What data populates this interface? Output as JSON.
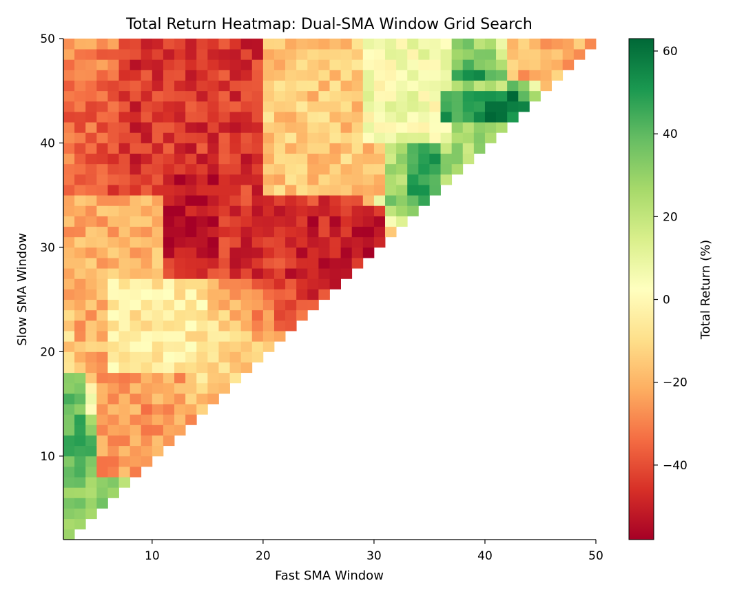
{
  "chart_data": {
    "type": "heatmap",
    "title": "Total Return Heatmap: Dual-SMA Window Grid Search",
    "xlabel": "Fast SMA Window",
    "ylabel": "Slow SMA Window",
    "colorbar_label": "Total Return (%)",
    "colormap": "RdYlGn",
    "colormap_stops": [
      "#a50026",
      "#d73027",
      "#f46d43",
      "#fdae61",
      "#fee08b",
      "#ffffbf",
      "#d9ef8b",
      "#a6d96a",
      "#66bd63",
      "#1a9850",
      "#006837"
    ],
    "value_range": [
      -58,
      63
    ],
    "xlim": [
      2,
      50
    ],
    "ylim": [
      2,
      50
    ],
    "x_ticks": [
      10,
      20,
      30,
      40,
      50
    ],
    "y_ticks": [
      10,
      20,
      30,
      40,
      50
    ],
    "colorbar_ticks": [
      -40,
      -20,
      0,
      20,
      40,
      60
    ],
    "colorbar_tick_labels": [
      "−40",
      "−20",
      "0",
      "20",
      "40",
      "60"
    ],
    "grid": false,
    "fast_windows": "2 to 49 (step 1)",
    "slow_windows": "3 to 50 (step 1)",
    "constraint": "fast < slow",
    "approximate_regions": [
      {
        "fast": [
          2,
          3
        ],
        "slow": [
          3,
          18
        ],
        "return_pct": 40
      },
      {
        "fast": [
          2,
          6
        ],
        "slow": [
          3,
          8
        ],
        "return_pct": 30
      },
      {
        "fast": [
          5,
          12
        ],
        "slow": [
          9,
          18
        ],
        "return_pct": -25
      },
      {
        "fast": [
          3,
          10
        ],
        "slow": [
          18,
          35
        ],
        "return_pct": -20
      },
      {
        "fast": [
          6,
          14
        ],
        "slow": [
          19,
          27
        ],
        "return_pct": -5
      },
      {
        "fast": [
          7,
          28
        ],
        "slow": [
          28,
          50
        ],
        "return_pct": -45
      },
      {
        "fast": [
          11,
          15
        ],
        "slow": [
          30,
          37
        ],
        "return_pct": -55
      },
      {
        "fast": [
          22,
          30
        ],
        "slow": [
          28,
          34
        ],
        "return_pct": -50
      },
      {
        "fast": [
          20,
          32
        ],
        "slow": [
          36,
          50
        ],
        "return_pct": -15
      },
      {
        "fast": [
          29,
          36
        ],
        "slow": [
          41,
          50
        ],
        "return_pct": 5
      },
      {
        "fast": [
          31,
          41
        ],
        "slow": [
          36,
          46
        ],
        "return_pct": 25
      },
      {
        "fast": [
          33,
          35
        ],
        "slow": [
          35,
          40
        ],
        "return_pct": 45
      },
      {
        "fast": [
          36,
          41
        ],
        "slow": [
          43,
          45
        ],
        "return_pct": 48
      },
      {
        "fast": [
          40,
          41
        ],
        "slow": [
          43,
          44
        ],
        "return_pct": 60
      },
      {
        "fast": [
          42,
          49
        ],
        "slow": [
          47,
          50
        ],
        "return_pct": -20
      }
    ]
  }
}
